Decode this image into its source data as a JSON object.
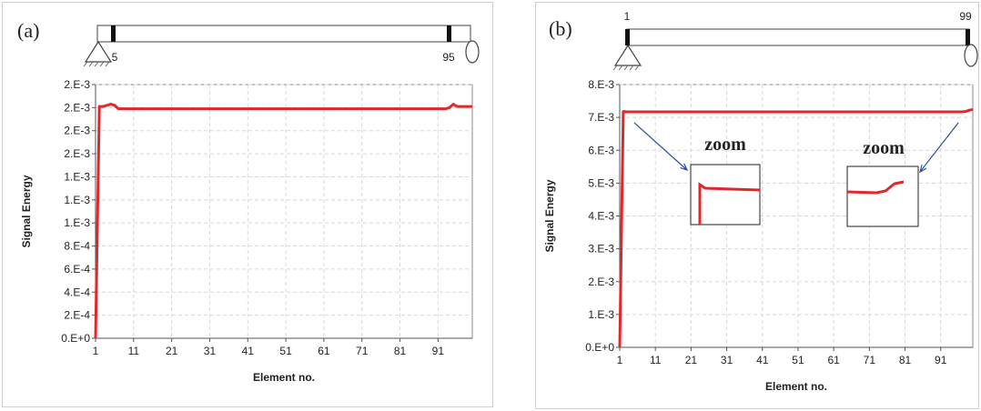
{
  "chart_data": [
    {
      "type": "line",
      "panel_label": "(a)",
      "xlabel": "Element no.",
      "ylabel": "Signal Energy",
      "xlim": [
        1,
        100
      ],
      "ylim": [
        0,
        0.0022
      ],
      "x_ticks": [
        1,
        11,
        21,
        31,
        41,
        51,
        61,
        71,
        81,
        91
      ],
      "x_tick_labels": [
        "1",
        "11",
        "21",
        "31",
        "41",
        "51",
        "61",
        "71",
        "81",
        "91"
      ],
      "y_ticks": [
        0,
        0.0002,
        0.0004,
        0.0006,
        0.0008,
        0.001,
        0.0012,
        0.0014,
        0.0016,
        0.0018,
        0.002,
        0.0022
      ],
      "y_tick_labels": [
        "0.E+0",
        "2.E-4",
        "4.E-4",
        "6.E-4",
        "8.E-4",
        "1.E-3",
        "1.E-3",
        "1.E-3",
        "2.E-3",
        "2.E-3",
        "2.E-3",
        "2.E-3"
      ],
      "grid": true,
      "series": [
        {
          "color": "#e0282a",
          "x": [
            1,
            2,
            3,
            4,
            5,
            6,
            7,
            8,
            20,
            40,
            60,
            80,
            93,
            94,
            95,
            96,
            97,
            100
          ],
          "y": [
            0,
            0.00201,
            0.00201,
            0.00202,
            0.00203,
            0.00202,
            0.00199,
            0.00199,
            0.00199,
            0.00199,
            0.00199,
            0.00199,
            0.00199,
            0.002,
            0.00203,
            0.00201,
            0.00201,
            0.00201
          ]
        }
      ],
      "beam": {
        "damage_labels": [
          "5",
          "95"
        ]
      }
    },
    {
      "type": "line",
      "panel_label": "(b)",
      "xlabel": "Element no.",
      "ylabel": "Signal Energy",
      "xlim": [
        1,
        100
      ],
      "ylim": [
        0,
        0.008
      ],
      "x_ticks": [
        1,
        11,
        21,
        31,
        41,
        51,
        61,
        71,
        81,
        91
      ],
      "x_tick_labels": [
        "1",
        "11",
        "21",
        "31",
        "41",
        "51",
        "61",
        "71",
        "81",
        "91"
      ],
      "y_ticks": [
        0,
        0.001,
        0.002,
        0.003,
        0.004,
        0.005,
        0.006,
        0.007,
        0.008
      ],
      "y_tick_labels": [
        "0.E+0",
        "1.E-3",
        "2.E-3",
        "3.E-3",
        "4.E-3",
        "5.E-3",
        "6.E-3",
        "7.E-3",
        "8.E-3"
      ],
      "grid": true,
      "series": [
        {
          "color": "#e0282a",
          "x": [
            1,
            2,
            3,
            20,
            40,
            60,
            80,
            97,
            98,
            99,
            100
          ],
          "y": [
            0,
            0.00718,
            0.00717,
            0.00717,
            0.00717,
            0.00717,
            0.00717,
            0.00717,
            0.00718,
            0.00722,
            0.00724
          ]
        }
      ],
      "beam": {
        "damage_labels": [
          "1",
          "99"
        ]
      },
      "annotations": [
        {
          "label": "zoom",
          "target_x": 2
        },
        {
          "label": "zoom",
          "target_x": 99
        }
      ]
    }
  ]
}
